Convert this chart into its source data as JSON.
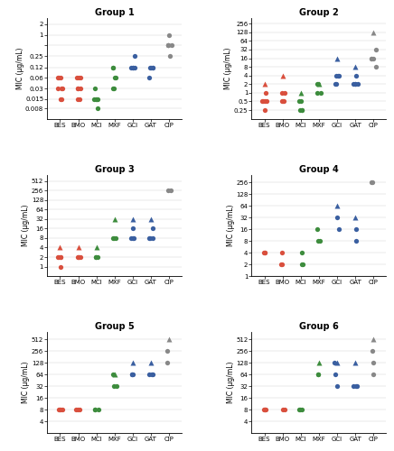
{
  "groups": [
    "Group 1",
    "Group 2",
    "Group 3",
    "Group 4",
    "Group 5",
    "Group 6"
  ],
  "xlabels": [
    "BES",
    "BMO",
    "MCI",
    "MXF",
    "GCI",
    "GAT",
    "CIP"
  ],
  "ylabel": "MIC (μg/mL)",
  "colors": {
    "red": "#d94f3d",
    "green": "#3d8c3d",
    "blue": "#3a5fa0",
    "gray": "#888888"
  },
  "group1": {
    "ylim_lo": 0.004,
    "ylim_hi": 3.0,
    "yticks": [
      0.008,
      0.015,
      0.03,
      0.06,
      0.12,
      0.25,
      0.5,
      1,
      2
    ],
    "yticklabels": [
      "0.008",
      "0.015",
      "0.03",
      "0.06",
      "0.12",
      "0.25",
      "",
      "1",
      "2"
    ],
    "data": {
      "BES": {
        "vals": [
          0.06,
          0.06,
          0.06,
          0.03,
          0.03,
          0.03,
          0.015,
          0.015
        ],
        "tri": []
      },
      "BMO": {
        "vals": [
          0.06,
          0.06,
          0.06,
          0.03,
          0.03,
          0.03,
          0.015,
          0.015
        ],
        "tri": []
      },
      "MCI": {
        "vals": [
          0.03,
          0.015,
          0.015,
          0.015,
          0.015,
          0.008
        ],
        "tri": []
      },
      "MXF": {
        "vals": [
          0.12,
          0.12,
          0.06,
          0.06,
          0.03,
          0.03
        ],
        "tri": []
      },
      "GCI": {
        "vals": [
          0.25,
          0.12,
          0.12,
          0.12,
          0.12
        ],
        "tri": []
      },
      "GAT": {
        "vals": [
          0.12,
          0.12,
          0.12,
          0.12,
          0.06
        ],
        "tri": []
      },
      "CIP": {
        "vals": [
          1.0,
          0.5,
          0.5,
          0.5,
          0.5,
          0.25
        ],
        "tri": []
      }
    }
  },
  "group2": {
    "ylim_lo": 0.12,
    "ylim_hi": 400.0,
    "yticks": [
      0.25,
      0.5,
      1,
      2,
      4,
      8,
      16,
      32,
      64,
      128,
      256
    ],
    "yticklabels": [
      "0.25",
      "0.5",
      "1",
      "2",
      "4",
      "8",
      "16",
      "32",
      "64",
      "128",
      "256"
    ],
    "data": {
      "BES": {
        "vals": [
          1.0,
          0.5,
          0.5,
          0.5,
          0.5,
          0.25
        ],
        "tri": [
          2.0
        ]
      },
      "BMO": {
        "vals": [
          1.0,
          1.0,
          0.5,
          0.5,
          0.5
        ],
        "tri": [
          4.0
        ]
      },
      "MCI": {
        "vals": [
          0.5,
          0.5,
          0.25,
          0.25,
          0.25
        ],
        "tri": [
          1.0
        ]
      },
      "MXF": {
        "vals": [
          2.0,
          2.0,
          1.0,
          1.0
        ],
        "tri": [
          2.0
        ]
      },
      "GCI": {
        "vals": [
          4.0,
          4.0,
          4.0,
          2.0,
          2.0
        ],
        "tri": [
          16.0
        ]
      },
      "GAT": {
        "vals": [
          4.0,
          2.0,
          2.0,
          2.0,
          2.0
        ],
        "tri": [
          8.0
        ]
      },
      "CIP": {
        "vals": [
          32.0,
          16.0,
          16.0,
          16.0,
          8.0
        ],
        "tri": [
          128.0
        ]
      }
    }
  },
  "group3": {
    "ylim_lo": 0.5,
    "ylim_hi": 800.0,
    "yticks": [
      1,
      2,
      4,
      8,
      16,
      32,
      64,
      128,
      256,
      512
    ],
    "yticklabels": [
      "1",
      "2",
      "4",
      "8",
      "16",
      "32",
      "64",
      "128",
      "256",
      "512"
    ],
    "data": {
      "BES": {
        "vals": [
          2.0,
          2.0,
          2.0,
          2.0,
          1.0
        ],
        "tri": [
          4.0
        ]
      },
      "BMO": {
        "vals": [
          2.0,
          2.0,
          2.0,
          2.0
        ],
        "tri": [
          4.0
        ]
      },
      "MCI": {
        "vals": [
          2.0,
          2.0,
          2.0
        ],
        "tri": [
          4.0
        ]
      },
      "MXF": {
        "vals": [
          8.0,
          8.0,
          8.0
        ],
        "tri": [
          32.0
        ]
      },
      "GCI": {
        "vals": [
          16.0,
          8.0,
          8.0,
          8.0
        ],
        "tri": [
          32.0
        ]
      },
      "GAT": {
        "vals": [
          16.0,
          8.0,
          8.0,
          8.0
        ],
        "tri": [
          32.0
        ]
      },
      "CIP": {
        "vals": [
          256.0,
          256.0
        ],
        "tri": []
      }
    }
  },
  "group4": {
    "ylim_lo": 1.0,
    "ylim_hi": 400.0,
    "yticks": [
      1,
      2,
      4,
      8,
      16,
      32,
      64,
      128,
      256
    ],
    "yticklabels": [
      "1",
      "2",
      "4",
      "8",
      "16",
      "32",
      "64",
      "128",
      "256"
    ],
    "data": {
      "BES": {
        "vals": [
          4.0,
          4.0,
          4.0
        ],
        "tri": []
      },
      "BMO": {
        "vals": [
          4.0,
          2.0,
          2.0
        ],
        "tri": []
      },
      "MCI": {
        "vals": [
          4.0,
          2.0,
          2.0
        ],
        "tri": []
      },
      "MXF": {
        "vals": [
          16.0,
          8.0,
          8.0
        ],
        "tri": []
      },
      "GCI": {
        "vals": [
          32.0,
          16.0
        ],
        "tri": [
          64.0
        ]
      },
      "GAT": {
        "vals": [
          16.0,
          8.0
        ],
        "tri": [
          32.0
        ]
      },
      "CIP": {
        "vals": [
          256.0,
          256.0
        ],
        "tri": []
      }
    }
  },
  "group5": {
    "ylim_lo": 2.0,
    "ylim_hi": 800.0,
    "yticks": [
      4,
      8,
      16,
      32,
      64,
      128,
      256,
      512
    ],
    "yticklabels": [
      "4",
      "8",
      "16",
      "32",
      "64",
      "128",
      "256",
      "512"
    ],
    "data": {
      "BES": {
        "vals": [
          8.0,
          8.0,
          8.0,
          8.0
        ],
        "tri": []
      },
      "BMO": {
        "vals": [
          8.0,
          8.0,
          8.0
        ],
        "tri": []
      },
      "MCI": {
        "vals": [
          8.0,
          8.0,
          8.0
        ],
        "tri": []
      },
      "MXF": {
        "vals": [
          64.0,
          32.0,
          32.0
        ],
        "tri": [
          64.0
        ]
      },
      "GCI": {
        "vals": [
          64.0,
          64.0,
          64.0
        ],
        "tri": [
          128.0
        ]
      },
      "GAT": {
        "vals": [
          64.0,
          64.0,
          64.0
        ],
        "tri": [
          128.0
        ]
      },
      "CIP": {
        "vals": [
          256.0,
          128.0
        ],
        "tri": [
          512.0
        ]
      }
    }
  },
  "group6": {
    "ylim_lo": 2.0,
    "ylim_hi": 800.0,
    "yticks": [
      4,
      8,
      16,
      32,
      64,
      128,
      256,
      512
    ],
    "yticklabels": [
      "4",
      "8",
      "16",
      "32",
      "64",
      "128",
      "256",
      "512"
    ],
    "data": {
      "BES": {
        "vals": [
          8.0,
          8.0,
          8.0,
          8.0
        ],
        "tri": []
      },
      "BMO": {
        "vals": [
          8.0,
          8.0
        ],
        "tri": []
      },
      "MCI": {
        "vals": [
          8.0,
          8.0,
          8.0
        ],
        "tri": []
      },
      "MXF": {
        "vals": [
          64.0,
          64.0
        ],
        "tri": [
          128.0
        ]
      },
      "GCI": {
        "vals": [
          128.0,
          64.0,
          32.0
        ],
        "tri": [
          128.0
        ]
      },
      "GAT": {
        "vals": [
          32.0,
          32.0,
          32.0
        ],
        "tri": [
          128.0
        ]
      },
      "CIP": {
        "vals": [
          256.0,
          128.0,
          64.0
        ],
        "tri": [
          512.0
        ]
      }
    }
  }
}
